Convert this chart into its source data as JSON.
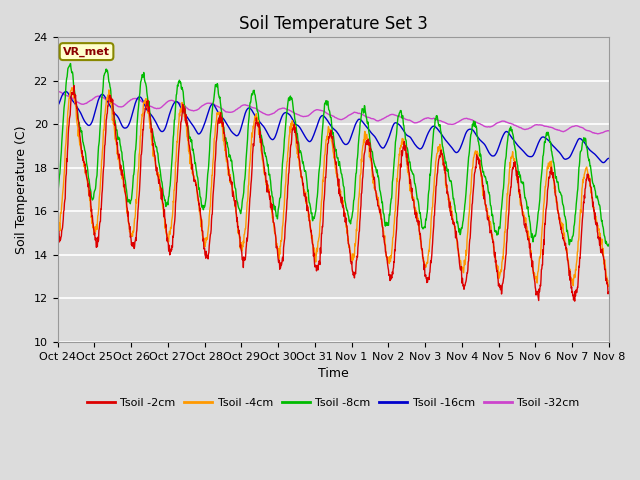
{
  "title": "Soil Temperature Set 3",
  "ylabel": "Soil Temperature (C)",
  "xlabel": "Time",
  "ylim": [
    10,
    24
  ],
  "n_days": 15,
  "annotation": "VR_met",
  "xtick_labels": [
    "Oct 24",
    "Oct 25",
    "Oct 26",
    "Oct 27",
    "Oct 28",
    "Oct 29",
    "Oct 30",
    "Oct 31",
    "Nov 1",
    "Nov 2",
    "Nov 3",
    "Nov 4",
    "Nov 5",
    "Nov 6",
    "Nov 7",
    "Nov 8"
  ],
  "line_colors": [
    "#dd0000",
    "#ff9900",
    "#00bb00",
    "#0000cc",
    "#cc44cc"
  ],
  "line_labels": [
    "Tsoil -2cm",
    "Tsoil -4cm",
    "Tsoil -8cm",
    "Tsoil -16cm",
    "Tsoil -32cm"
  ],
  "plot_bg": "#dcdcdc",
  "grid_color": "white",
  "fig_bg": "#dcdcdc",
  "yticks": [
    10,
    12,
    14,
    16,
    18,
    20,
    22,
    24
  ],
  "title_fontsize": 12,
  "axis_label_fontsize": 9,
  "tick_fontsize": 8
}
